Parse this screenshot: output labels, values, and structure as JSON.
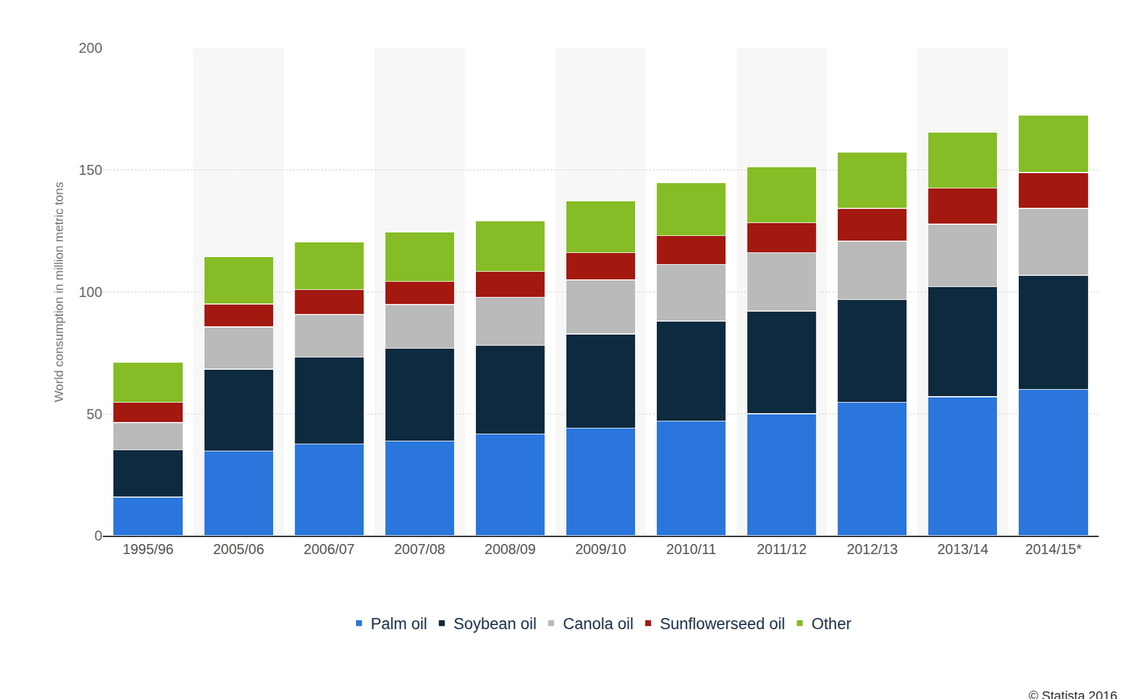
{
  "chart_data": {
    "type": "bar",
    "stacked": true,
    "y_label": "World consumption in million metric tons",
    "annotations": [
      "© Statista 2016"
    ],
    "categories": [
      "1995/96",
      "2005/06",
      "2006/07",
      "2007/08",
      "2008/09",
      "2009/10",
      "2010/11",
      "2011/12",
      "2012/13",
      "2013/14",
      "2014/15*"
    ],
    "series": [
      {
        "name": "Palm oil",
        "color": "#2a76dd",
        "values": [
          15.9,
          34.8,
          37.7,
          38.9,
          41.8,
          44.2,
          47.1,
          50.1,
          54.8,
          57.1,
          60.1
        ]
      },
      {
        "name": "Soybean oil",
        "color": "#0e2a3f",
        "values": [
          19.4,
          33.5,
          35.6,
          38.0,
          36.3,
          38.6,
          41.0,
          42.1,
          42.1,
          45.1,
          46.8
        ]
      },
      {
        "name": "Canola oil",
        "color": "#bababa",
        "values": [
          11.2,
          17.4,
          17.4,
          17.9,
          19.7,
          22.1,
          23.2,
          23.9,
          23.9,
          25.6,
          27.4
        ]
      },
      {
        "name": "Sunflowerseed oil",
        "color": "#a3180f",
        "values": [
          8.3,
          9.4,
          10.3,
          9.5,
          10.6,
          11.2,
          11.8,
          12.3,
          13.5,
          14.8,
          14.7
        ]
      },
      {
        "name": "Other",
        "color": "#86bc25",
        "values": [
          16.5,
          19.5,
          19.5,
          20.3,
          20.9,
          21.2,
          21.8,
          23.0,
          23.0,
          22.9,
          23.6
        ]
      }
    ],
    "ylim": [
      0,
      200
    ],
    "yticks": [
      0,
      50,
      100,
      150,
      200
    ],
    "grid": true,
    "legend": "bottom"
  }
}
